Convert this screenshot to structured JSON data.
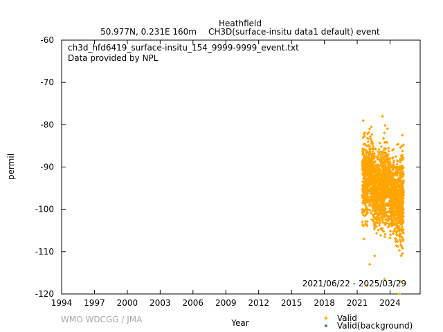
{
  "chart_data": {
    "type": "scatter",
    "title": "Heathfield",
    "subtitle_left": "50.977N, 0.231E 160m",
    "subtitle_right": "CH3D(surface-insitu data1 default) event",
    "file_label": "ch3d_hfd6419_surface-insitu_154_9999-9999_event.txt",
    "provider_label": "Data provided by NPL",
    "date_range": "2021/06/22 - 2025/03/29",
    "xlabel": "Year",
    "ylabel": "permil",
    "credit": "WMO WDCGG / JMA",
    "xlim": [
      1994,
      2026.75
    ],
    "ylim": [
      -120,
      -60
    ],
    "x_ticks": [
      "1994",
      "1997",
      "2000",
      "2003",
      "2006",
      "2009",
      "2012",
      "2015",
      "2018",
      "2021",
      "2024"
    ],
    "y_ticks": [
      "-60",
      "-70",
      "-80",
      "-90",
      "-100",
      "-110",
      "-120"
    ],
    "grid": false,
    "legend_placement": "bottom-right",
    "series": [
      {
        "name": "Valid",
        "color": "#ffa500",
        "marker": "diamond",
        "segments": [
          {
            "x": [
              2021.47,
              2021.95
            ],
            "y_center": -93,
            "y_spread": 8
          },
          {
            "x": [
              2021.95,
              2022.45
            ],
            "y_center": -92,
            "y_spread": 7
          },
          {
            "x": [
              2022.45,
              2022.9
            ],
            "y_center": -96,
            "y_spread": 7
          },
          {
            "x": [
              2022.9,
              2023.4
            ],
            "y_center": -95,
            "y_spread": 8
          },
          {
            "x": [
              2023.4,
              2023.9
            ],
            "y_center": -94,
            "y_spread": 8
          },
          {
            "x": [
              2023.9,
              2024.4
            ],
            "y_center": -96,
            "y_spread": 7
          },
          {
            "x": [
              2024.4,
              2024.9
            ],
            "y_center": -98,
            "y_spread": 8
          },
          {
            "x": [
              2024.9,
              2025.24
            ],
            "y_center": -97,
            "y_spread": 9
          }
        ],
        "notable_points": [
          {
            "x": 2021.55,
            "y": -79
          },
          {
            "x": 2023.3,
            "y": -78
          },
          {
            "x": 2022.3,
            "y": -80.5
          },
          {
            "x": 2021.9,
            "y": -118
          },
          {
            "x": 2024.95,
            "y": -117
          },
          {
            "x": 2024.85,
            "y": -120
          },
          {
            "x": 2022.15,
            "y": -113
          },
          {
            "x": 2023.5,
            "y": -116.5
          },
          {
            "x": 2021.62,
            "y": -107
          },
          {
            "x": 2022.6,
            "y": -111
          }
        ]
      },
      {
        "name": "Valid(background)",
        "color": "#2e8b57",
        "marker": "diamond"
      }
    ]
  }
}
